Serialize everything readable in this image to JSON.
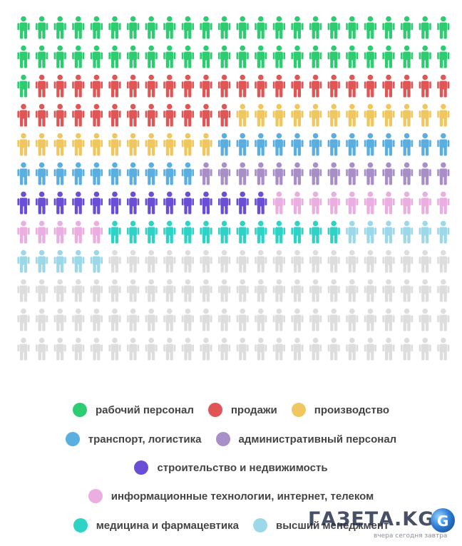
{
  "chart_data": {
    "type": "pictogram",
    "grid": {
      "columns": 24,
      "rows": 12,
      "total_icons": 288
    },
    "series": [
      {
        "name": "рабочий персонал",
        "icons": 49,
        "color": "#2ecc71"
      },
      {
        "name": "продажи",
        "icons": 35,
        "color": "#e05555"
      },
      {
        "name": "производство",
        "icons": 23,
        "color": "#f0c75e"
      },
      {
        "name": "транспорт, логистика",
        "icons": 23,
        "color": "#5aaee0"
      },
      {
        "name": "административный персонал",
        "icons": 14,
        "color": "#a98fc8"
      },
      {
        "name": "строительство и недвижимость",
        "icons": 14,
        "color": "#6a4fd6"
      },
      {
        "name": "информационные технологии, интернет, телеком",
        "icons": 15,
        "color": "#eaaee0"
      },
      {
        "name": "медицина и фармацевтика",
        "icons": 13,
        "color": "#2ed3c5"
      },
      {
        "name": "высший менеджмент",
        "icons": 11,
        "color": "#9dd8e8"
      }
    ],
    "remainder": {
      "icons": 91,
      "color": "#dddddd"
    }
  },
  "legend": {
    "rows": [
      [
        0,
        1,
        2
      ],
      [
        3,
        4
      ],
      [
        5
      ],
      [
        6
      ],
      [
        7,
        8
      ]
    ]
  },
  "logo": {
    "text": "ГАЗЕТА.KG",
    "tagline": "вчера сегодня завтра",
    "globe_letter": "G"
  }
}
